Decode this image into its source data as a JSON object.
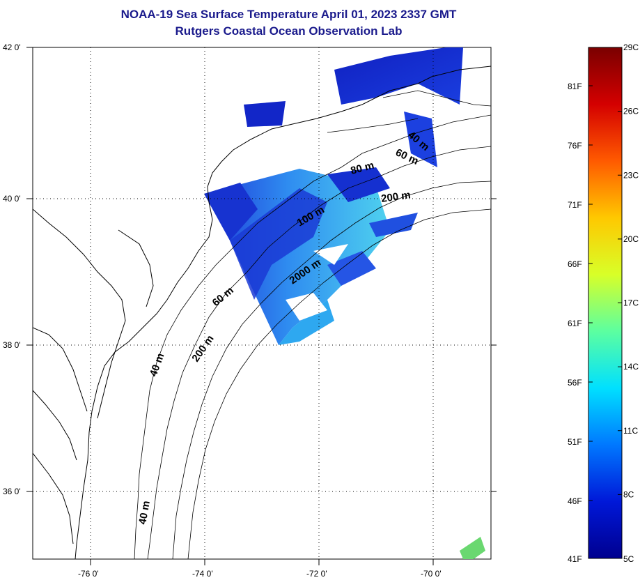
{
  "header": {
    "title_line1": "NOAA-19 Sea Surface Temperature April 01, 2023 2337 GMT",
    "title_line2": "Rutgers Coastal Ocean Observation Lab"
  },
  "map": {
    "lat_labels": [
      "42 0'",
      "40 0'",
      "38 0'",
      "36 0'"
    ],
    "lon_labels": [
      "-76 0'",
      "-74 0'",
      "-72 0'",
      "-70 0'"
    ],
    "contour_labels": [
      "40 m",
      "60 m",
      "80 m",
      "200 m",
      "100 m",
      "2000 m",
      "60 m",
      "200 m",
      "40 m",
      "40 m"
    ]
  },
  "colorbar": {
    "fahrenheit_labels": [
      "81F",
      "76F",
      "71F",
      "66F",
      "61F",
      "56F",
      "51F",
      "46F",
      "41F"
    ],
    "celsius_labels": [
      "29C",
      "26C",
      "23C",
      "20C",
      "17C",
      "14C",
      "11C",
      "8C",
      "5C"
    ],
    "colors": [
      "#7a0000",
      "#d40000",
      "#ff5a00",
      "#ffc800",
      "#d8ff28",
      "#5cffa0",
      "#00e0ff",
      "#0078ff",
      "#0018d8",
      "#00008f"
    ]
  }
}
